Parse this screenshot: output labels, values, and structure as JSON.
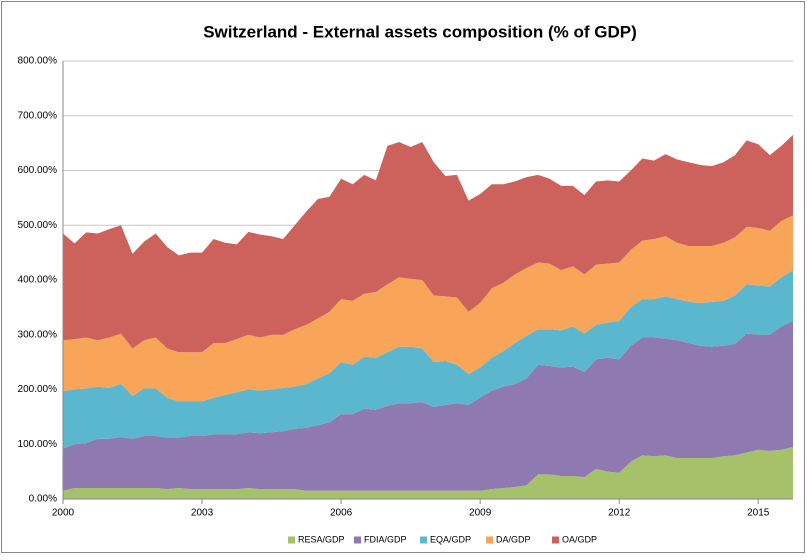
{
  "chart_data": {
    "type": "stacked-area",
    "title": "Switzerland - External assets composition (% of GDP)",
    "x": [
      2000,
      2000.25,
      2000.5,
      2000.75,
      2001,
      2001.25,
      2001.5,
      2001.75,
      2002,
      2002.25,
      2002.5,
      2002.75,
      2003,
      2003.25,
      2003.5,
      2003.75,
      2004,
      2004.25,
      2004.5,
      2004.75,
      2005,
      2005.25,
      2005.5,
      2005.75,
      2006,
      2006.25,
      2006.5,
      2006.75,
      2007,
      2007.25,
      2007.5,
      2007.75,
      2008,
      2008.25,
      2008.5,
      2008.75,
      2009,
      2009.25,
      2009.5,
      2009.75,
      2010,
      2010.25,
      2010.5,
      2010.75,
      2011,
      2011.25,
      2011.5,
      2011.75,
      2012,
      2012.25,
      2012.5,
      2012.75,
      2013,
      2013.25,
      2013.5,
      2013.75,
      2014,
      2014.25,
      2014.5,
      2014.75,
      2015,
      2015.25,
      2015.5,
      2015.75
    ],
    "series": [
      {
        "name": "RESA/GDP",
        "color": "#a5c26a",
        "values": [
          15,
          20,
          20,
          20,
          20,
          20,
          20,
          20,
          20,
          18,
          20,
          18,
          18,
          18,
          18,
          18,
          20,
          18,
          18,
          18,
          18,
          15,
          15,
          15,
          15,
          15,
          15,
          15,
          15,
          15,
          15,
          15,
          15,
          15,
          15,
          15,
          15,
          18,
          20,
          22,
          25,
          45,
          45,
          42,
          42,
          40,
          55,
          50,
          48,
          68,
          80,
          78,
          80,
          75,
          75,
          75,
          75,
          78,
          80,
          85,
          90,
          88,
          90,
          95
        ]
      },
      {
        "name": "FDIA/GDP",
        "color": "#8e79b0",
        "values": [
          77,
          80,
          82,
          90,
          90,
          93,
          90,
          95,
          95,
          94,
          92,
          97,
          97,
          100,
          100,
          100,
          102,
          102,
          104,
          106,
          110,
          115,
          120,
          125,
          140,
          140,
          150,
          148,
          155,
          160,
          160,
          162,
          153,
          157,
          160,
          157,
          170,
          180,
          185,
          188,
          195,
          200,
          198,
          198,
          200,
          192,
          200,
          208,
          207,
          212,
          215,
          217,
          213,
          215,
          210,
          205,
          203,
          202,
          203,
          217,
          210,
          212,
          225,
          230
        ]
      },
      {
        "name": "EQA/GDP",
        "color": "#5bb7cd",
        "values": [
          105,
          100,
          100,
          95,
          93,
          97,
          78,
          87,
          87,
          73,
          66,
          63,
          63,
          67,
          72,
          77,
          78,
          78,
          78,
          79,
          77,
          80,
          85,
          90,
          95,
          90,
          95,
          95,
          98,
          103,
          103,
          98,
          82,
          80,
          70,
          56,
          55,
          60,
          65,
          75,
          78,
          65,
          67,
          68,
          73,
          70,
          63,
          64,
          70,
          70,
          70,
          70,
          77,
          75,
          75,
          78,
          82,
          82,
          89,
          90,
          90,
          88,
          90,
          93
        ]
      },
      {
        "name": "DA/GDP",
        "color": "#f8a55a",
        "values": [
          93,
          92,
          93,
          85,
          92,
          92,
          87,
          88,
          93,
          90,
          90,
          90,
          90,
          100,
          95,
          97,
          100,
          97,
          100,
          97,
          105,
          108,
          110,
          112,
          115,
          117,
          115,
          120,
          124,
          127,
          124,
          125,
          122,
          118,
          123,
          114,
          118,
          127,
          125,
          125,
          124,
          122,
          120,
          110,
          110,
          108,
          110,
          108,
          107,
          105,
          107,
          110,
          110,
          103,
          102,
          104,
          102,
          106,
          106,
          105,
          105,
          102,
          103,
          100
        ]
      },
      {
        "name": "OA/GDP",
        "color": "#cd625c",
        "values": [
          195,
          175,
          192,
          195,
          198,
          198,
          173,
          180,
          190,
          185,
          177,
          182,
          182,
          190,
          183,
          173,
          188,
          188,
          180,
          175,
          190,
          207,
          218,
          210,
          220,
          213,
          217,
          204,
          253,
          247,
          241,
          252,
          243,
          220,
          224,
          203,
          199,
          190,
          180,
          170,
          166,
          160,
          155,
          154,
          147,
          145,
          152,
          152,
          148,
          145,
          150,
          143,
          150,
          152,
          153,
          148,
          146,
          147,
          150,
          158,
          153,
          138,
          137,
          147
        ]
      }
    ],
    "xlim": [
      2000,
      2015.75
    ],
    "xticks": [
      2000,
      2003,
      2006,
      2009,
      2012,
      2015
    ],
    "ylim": [
      0,
      800
    ],
    "yticks": [
      {
        "value": 0,
        "label": "0.00%"
      },
      {
        "value": 100,
        "label": "100.00%"
      },
      {
        "value": 200,
        "label": "200.00%"
      },
      {
        "value": 300,
        "label": "300.00%"
      },
      {
        "value": 400,
        "label": "400.00%"
      },
      {
        "value": 500,
        "label": "500.00%"
      },
      {
        "value": 600,
        "label": "600.00%"
      },
      {
        "value": 700,
        "label": "700.00%"
      },
      {
        "value": 800,
        "label": "800.00%"
      }
    ],
    "grid": true,
    "legend": "bottom"
  }
}
